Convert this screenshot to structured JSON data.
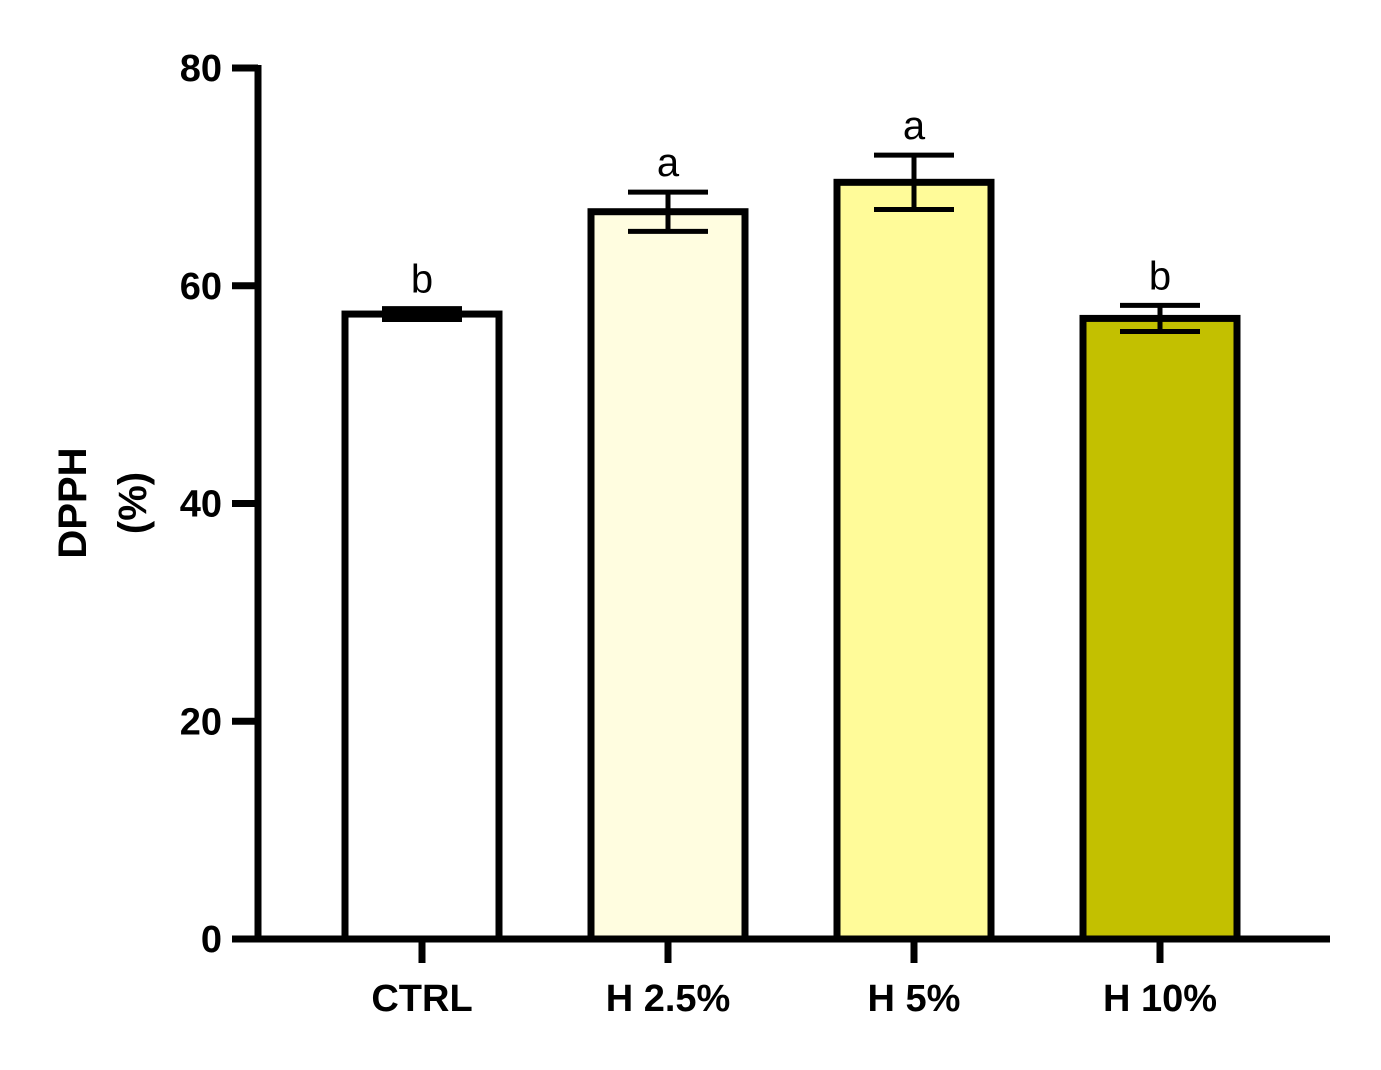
{
  "chart_data": {
    "type": "bar",
    "title": "",
    "xlabel": "",
    "ylabel_lines": [
      "DPPH",
      "(%)"
    ],
    "categories": [
      "CTRL",
      "H 2.5%",
      "H 5%",
      "H 10%"
    ],
    "values": [
      57.4,
      66.8,
      69.5,
      57.0
    ],
    "errors": [
      0.5,
      1.8,
      2.5,
      1.2
    ],
    "significance": [
      "b",
      "a",
      "a",
      "b"
    ],
    "colors": [
      "#ffffff",
      "#fffde0",
      "#fffb99",
      "#c3c000"
    ],
    "ylim": [
      0,
      80
    ],
    "yticks": [
      "0",
      "20",
      "40",
      "60",
      "80"
    ],
    "grid": false,
    "legend": "none"
  }
}
